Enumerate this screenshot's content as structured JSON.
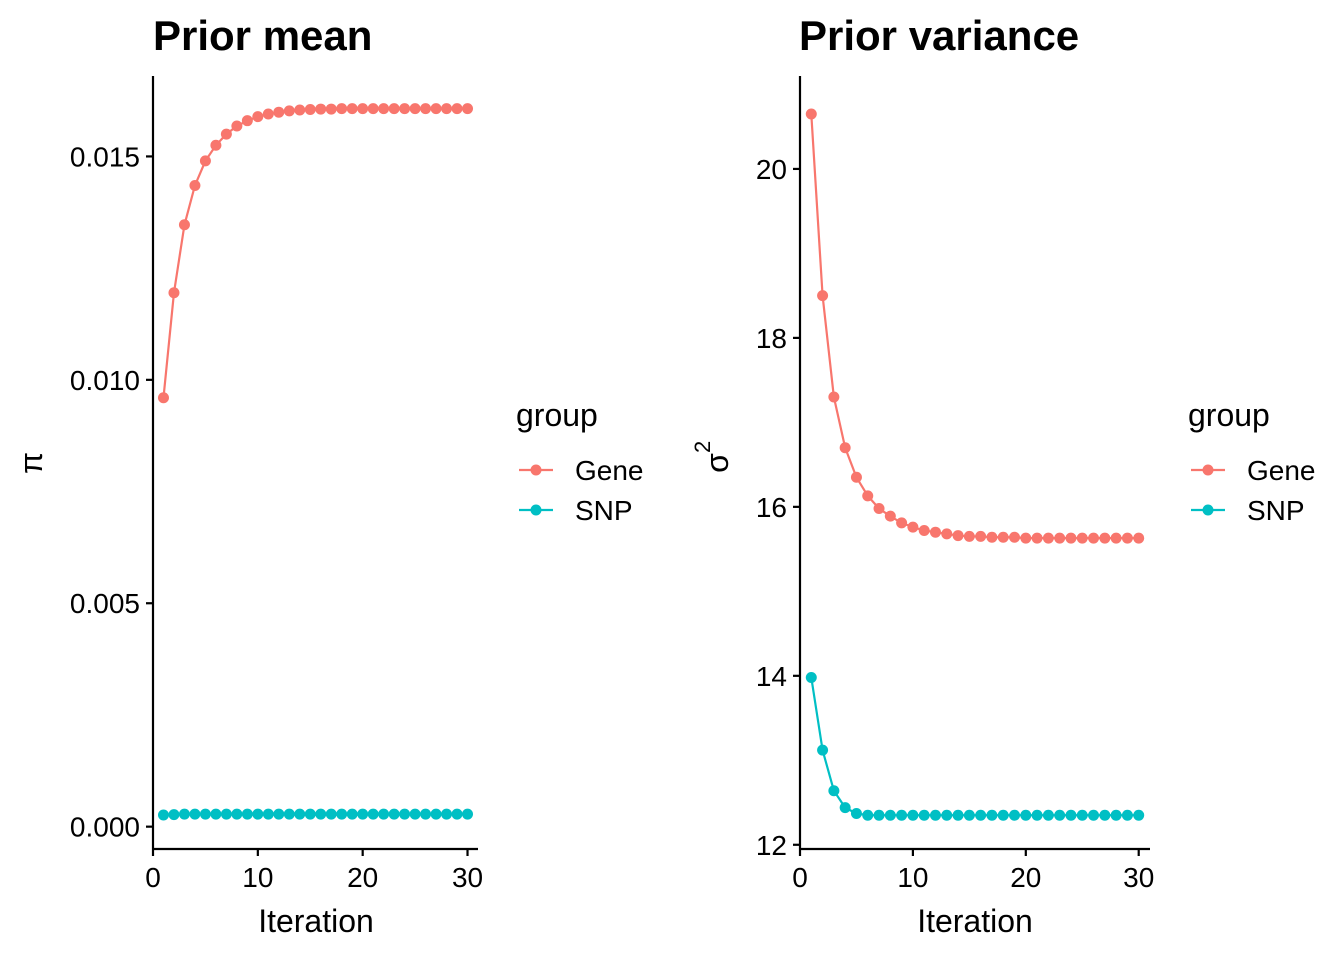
{
  "chart_data": [
    {
      "type": "line",
      "title": "Prior mean",
      "xlabel": "Iteration",
      "ylabel": "π",
      "xlim": [
        0,
        31
      ],
      "ylim": [
        -0.0005,
        0.0168
      ],
      "xticks": [
        0,
        10,
        20,
        30
      ],
      "xtick_labels": [
        "0",
        "10",
        "20",
        "30"
      ],
      "yticks": [
        0,
        0.005,
        0.01,
        0.015
      ],
      "ytick_labels": [
        "0.000",
        "0.005",
        "0.010",
        "0.015"
      ],
      "grid": false,
      "legend": {
        "title": "group",
        "position": "right"
      },
      "x": [
        1,
        2,
        3,
        4,
        5,
        6,
        7,
        8,
        9,
        10,
        11,
        12,
        13,
        14,
        15,
        16,
        17,
        18,
        19,
        20,
        21,
        22,
        23,
        24,
        25,
        26,
        27,
        28,
        29,
        30
      ],
      "series": [
        {
          "name": "Gene",
          "color": "#F8766D",
          "values": [
            0.0096,
            0.01195,
            0.01347,
            0.01435,
            0.0149,
            0.01525,
            0.0155,
            0.01568,
            0.0158,
            0.01589,
            0.01595,
            0.01599,
            0.01602,
            0.01604,
            0.01605,
            0.01606,
            0.01606,
            0.01607,
            0.01607,
            0.01607,
            0.01607,
            0.01607,
            0.01607,
            0.01607,
            0.01607,
            0.01607,
            0.01607,
            0.01607,
            0.01607,
            0.01607
          ]
        },
        {
          "name": "SNP",
          "color": "#00BFC4",
          "values": [
            0.00026,
            0.00027,
            0.00028,
            0.00028,
            0.00028,
            0.00028,
            0.00028,
            0.00028,
            0.00028,
            0.00028,
            0.00028,
            0.00028,
            0.00028,
            0.00028,
            0.00028,
            0.00028,
            0.00028,
            0.00028,
            0.00028,
            0.00028,
            0.00028,
            0.00028,
            0.00028,
            0.00028,
            0.00028,
            0.00028,
            0.00028,
            0.00028,
            0.00028,
            0.00028
          ]
        }
      ]
    },
    {
      "type": "line",
      "title": "Prior variance",
      "xlabel": "Iteration",
      "ylabel": "σ",
      "ylabel_superscript": "2",
      "xlim": [
        0,
        31
      ],
      "ylim": [
        11.95,
        21.1
      ],
      "xticks": [
        0,
        10,
        20,
        30
      ],
      "xtick_labels": [
        "0",
        "10",
        "20",
        "30"
      ],
      "yticks": [
        12,
        14,
        16,
        18,
        20
      ],
      "ytick_labels": [
        "12",
        "14",
        "16",
        "18",
        "20"
      ],
      "grid": false,
      "legend": {
        "title": "group",
        "position": "right"
      },
      "x": [
        1,
        2,
        3,
        4,
        5,
        6,
        7,
        8,
        9,
        10,
        11,
        12,
        13,
        14,
        15,
        16,
        17,
        18,
        19,
        20,
        21,
        22,
        23,
        24,
        25,
        26,
        27,
        28,
        29,
        30
      ],
      "series": [
        {
          "name": "Gene",
          "color": "#F8766D",
          "values": [
            20.65,
            18.5,
            17.3,
            16.7,
            16.35,
            16.13,
            15.98,
            15.89,
            15.81,
            15.76,
            15.72,
            15.7,
            15.68,
            15.66,
            15.65,
            15.65,
            15.64,
            15.64,
            15.64,
            15.63,
            15.63,
            15.63,
            15.63,
            15.63,
            15.63,
            15.63,
            15.63,
            15.63,
            15.63,
            15.63
          ]
        },
        {
          "name": "SNP",
          "color": "#00BFC4",
          "values": [
            13.98,
            13.12,
            12.64,
            12.44,
            12.37,
            12.35,
            12.35,
            12.35,
            12.35,
            12.35,
            12.35,
            12.35,
            12.35,
            12.35,
            12.35,
            12.35,
            12.35,
            12.35,
            12.35,
            12.35,
            12.35,
            12.35,
            12.35,
            12.35,
            12.35,
            12.35,
            12.35,
            12.35,
            12.35,
            12.35
          ]
        }
      ]
    }
  ]
}
